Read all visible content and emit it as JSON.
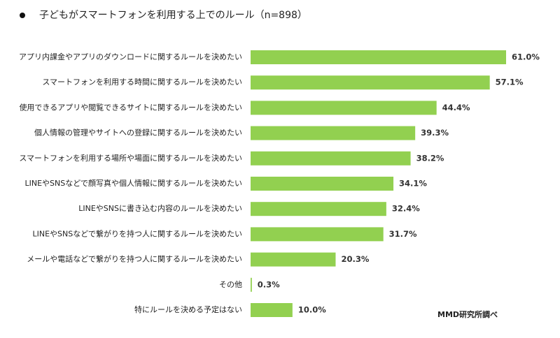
{
  "chart_data": {
    "type": "bar",
    "orientation": "horizontal",
    "title": "子どもがスマートフォンを利用する上でのルール（n=898）",
    "source": "MMD研究所調べ",
    "categories": [
      "アプリ内課金やアプリのダウンロードに関するルールを決めたい",
      "スマートフォンを利用する時間に関するルールを決めたい",
      "使用できるアプリや閲覧できるサイトに関するルールを決めたい",
      "個人情報の管理やサイトへの登録に関するルールを決めたい",
      "スマートフォンを利用する場所や場面に関するルールを決めたい",
      "LINEやSNSなどで顔写真や個人情報に関するルールを決めたい",
      "LINEやSNSに書き込む内容のルールを決めたい",
      "LINEやSNSなどで繋がりを持つ人に関するルールを決めたい",
      "メールや電話などで繋がりを持つ人に関するルールを決めたい",
      "その他",
      "特にルールを決める予定はない"
    ],
    "values": [
      61.0,
      57.1,
      44.4,
      39.3,
      38.2,
      34.1,
      32.4,
      31.7,
      20.3,
      0.3,
      10.0
    ],
    "value_labels": [
      "61.0%",
      "57.1%",
      "44.4%",
      "39.3%",
      "38.2%",
      "34.1%",
      "32.4%",
      "31.7%",
      "20.3%",
      "0.3%",
      "10.0%"
    ],
    "color": "#92d050"
  }
}
